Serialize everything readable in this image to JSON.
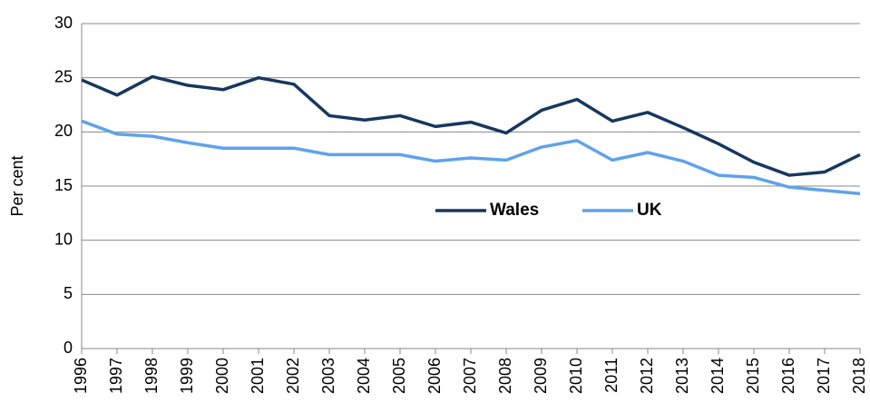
{
  "chart_data": {
    "type": "line",
    "y_label": "Per cent",
    "categories": [
      "1996",
      "1997",
      "1998",
      "1999",
      "2000",
      "2001",
      "2002",
      "2003",
      "2004",
      "2005",
      "2006",
      "2007",
      "2008",
      "2009",
      "2010",
      "2011",
      "2012",
      "2013",
      "2014",
      "2015",
      "2016",
      "2017",
      "2018"
    ],
    "series": [
      {
        "name": "Wales",
        "color": "#17375e",
        "values": [
          24.8,
          23.4,
          25.1,
          24.3,
          23.9,
          25.0,
          24.4,
          21.5,
          21.1,
          21.5,
          20.5,
          20.9,
          19.9,
          22.0,
          23.0,
          21.0,
          21.8,
          20.4,
          18.9,
          17.2,
          16.0,
          16.3,
          17.9
        ]
      },
      {
        "name": "UK",
        "color": "#5fa2ec",
        "values": [
          21.0,
          19.8,
          19.6,
          19.0,
          18.5,
          18.5,
          18.5,
          17.9,
          17.9,
          17.9,
          17.3,
          17.6,
          17.4,
          18.6,
          19.2,
          17.4,
          18.1,
          17.3,
          16.0,
          15.8,
          14.9,
          14.6,
          14.3
        ]
      }
    ],
    "ylim": [
      0,
      30
    ],
    "yticks": [
      0,
      5,
      10,
      15,
      20,
      25,
      30
    ],
    "grid": true,
    "legend": "center-right"
  }
}
